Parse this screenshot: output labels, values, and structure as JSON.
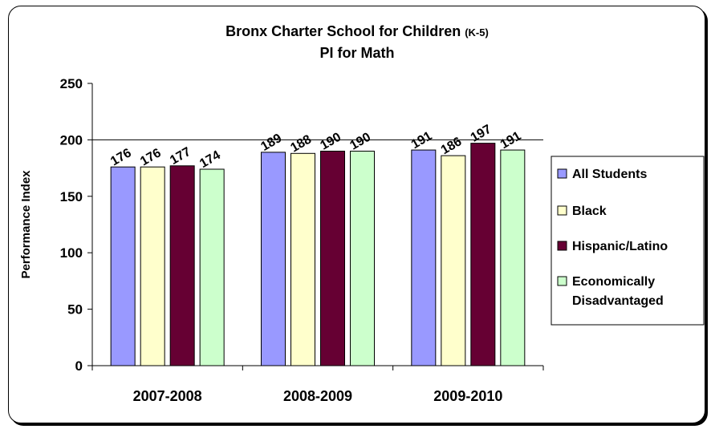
{
  "chart_data": {
    "type": "bar",
    "title": "Bronx Charter School for Children",
    "title_suffix": "(K-5)",
    "subtitle": "PI for Math",
    "ylabel": "Performance Index",
    "xlabel": "",
    "ylim": [
      0,
      250
    ],
    "yticks": [
      "0",
      "50",
      "100",
      "150",
      "200",
      "250"
    ],
    "grid": "horizontal at 200",
    "legend_position": "right",
    "categories": [
      "2007-2008",
      "2008-2009",
      "2009-2010"
    ],
    "series": [
      {
        "name": "All Students",
        "color": "#9999ff",
        "values": [
          176,
          189,
          191
        ]
      },
      {
        "name": "Black",
        "color": "#ffffcc",
        "values": [
          176,
          188,
          186
        ]
      },
      {
        "name": "Hispanic/Latino",
        "color": "#660033",
        "values": [
          177,
          190,
          197
        ]
      },
      {
        "name": "Economically Disadvantaged",
        "color": "#ccffcc",
        "values": [
          174,
          190,
          191
        ]
      }
    ],
    "legend_lines": [
      [
        "All Students"
      ],
      [
        "Black"
      ],
      [
        "Hispanic/Latino"
      ],
      [
        "Economically",
        "Disadvantaged"
      ]
    ]
  }
}
